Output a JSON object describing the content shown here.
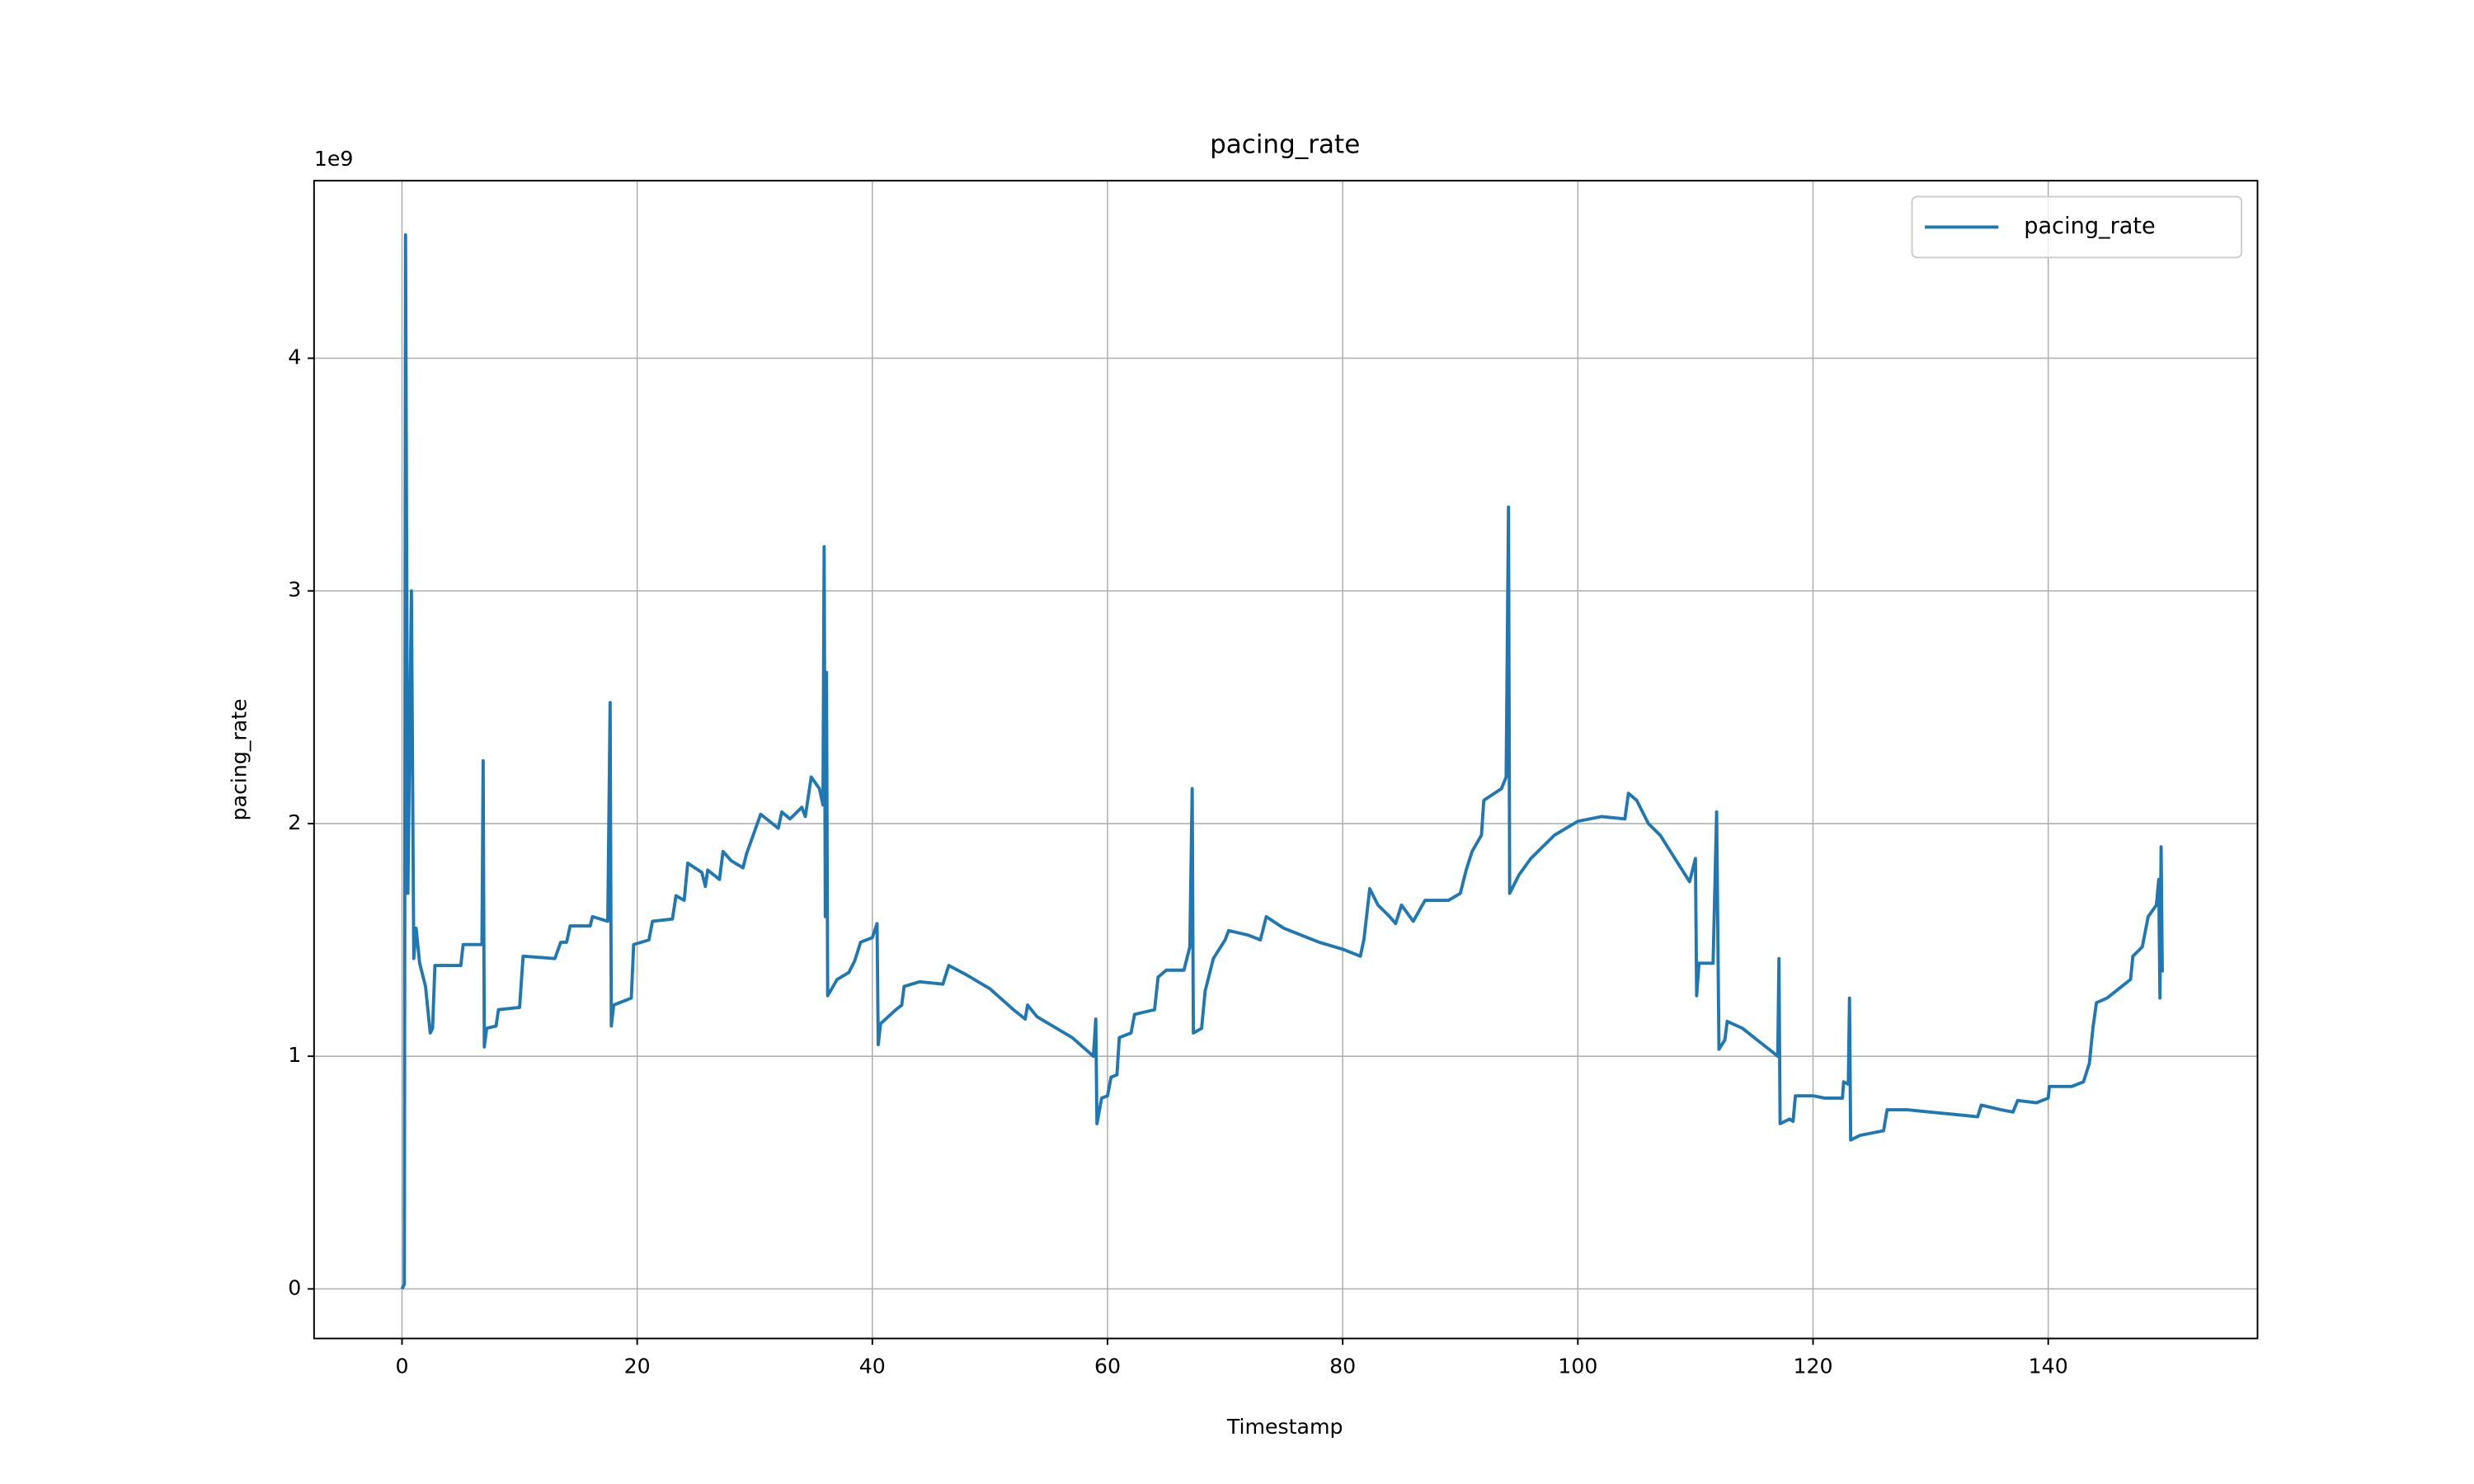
{
  "chart_data": {
    "type": "line",
    "title": "pacing_rate",
    "xlabel": "Timestamp",
    "ylabel": "pacing_rate",
    "y_offset_label": "1e9",
    "x": [
      0,
      0.2,
      0.3,
      0.5,
      0.8,
      1.0,
      1.2,
      1.5,
      2.0,
      2.4,
      2.6,
      2.8,
      5,
      5.2,
      6.8,
      6.9,
      7.0,
      7.2,
      8,
      8.2,
      10,
      10.3,
      13,
      13.5,
      14,
      14.3,
      16,
      16.2,
      17.5,
      17.7,
      17.8,
      18,
      19.5,
      19.7,
      21,
      21.3,
      23,
      23.3,
      24,
      24.3,
      25.5,
      25.8,
      26,
      27,
      27.3,
      28,
      29,
      29.3,
      30.5,
      32,
      32.3,
      33,
      34,
      34.3,
      34.8,
      35.5,
      35.8,
      35.9,
      36,
      36.1,
      36.2,
      37,
      38,
      38.5,
      39,
      40,
      40.4,
      40.5,
      40.7,
      42,
      42.5,
      42.7,
      44,
      46,
      46.5,
      48,
      50,
      52,
      53,
      53.2,
      54,
      56,
      57,
      58.8,
      59,
      59.1,
      59.5,
      60,
      60.3,
      60.8,
      61,
      62,
      62.3,
      64,
      64.3,
      65,
      66.5,
      67,
      67.2,
      67.3,
      68,
      68.3,
      68.6,
      69,
      70,
      70.3,
      72,
      73,
      73.5,
      75,
      78,
      80,
      81.5,
      81.8,
      82.3,
      83,
      84,
      84.5,
      85,
      86,
      87,
      89,
      90,
      90.5,
      91,
      91.8,
      92,
      93.5,
      93.9,
      94.1,
      94.2,
      95,
      96,
      98,
      100,
      102,
      104,
      104.3,
      105,
      106,
      107,
      108,
      109.5,
      110,
      110.1,
      110.3,
      111.5,
      111.8,
      112,
      112.5,
      112.7,
      114,
      116,
      117,
      117.1,
      117.2,
      118,
      118.3,
      118.5,
      120,
      121,
      122.5,
      122.6,
      123,
      123.1,
      123.2,
      124,
      126,
      126.3,
      128,
      130,
      132,
      134,
      134.3,
      136,
      137,
      137.4,
      139,
      140,
      140.1,
      142,
      143,
      143.5,
      143.8,
      144.1,
      145,
      146,
      147,
      147.2,
      148,
      148.5,
      149.2,
      149.4,
      149.5,
      149.6,
      149.7
    ],
    "series": [
      {
        "name": "pacing_rate",
        "color": "#1f77b4",
        "values": [
          0,
          0.02,
          4.53,
          1.7,
          3.0,
          1.42,
          1.55,
          1.4,
          1.3,
          1.1,
          1.12,
          1.39,
          1.39,
          1.48,
          1.48,
          2.27,
          1.04,
          1.12,
          1.13,
          1.2,
          1.21,
          1.43,
          1.42,
          1.49,
          1.49,
          1.56,
          1.56,
          1.6,
          1.58,
          2.52,
          1.13,
          1.22,
          1.25,
          1.48,
          1.5,
          1.58,
          1.59,
          1.69,
          1.67,
          1.83,
          1.79,
          1.73,
          1.8,
          1.76,
          1.88,
          1.84,
          1.81,
          1.87,
          2.04,
          1.98,
          2.05,
          2.02,
          2.07,
          2.03,
          2.2,
          2.15,
          2.08,
          3.19,
          1.6,
          2.65,
          1.26,
          1.33,
          1.36,
          1.41,
          1.49,
          1.51,
          1.57,
          1.05,
          1.14,
          1.2,
          1.22,
          1.3,
          1.32,
          1.31,
          1.39,
          1.35,
          1.29,
          1.2,
          1.16,
          1.22,
          1.17,
          1.11,
          1.08,
          1.0,
          1.16,
          0.71,
          0.82,
          0.83,
          0.91,
          0.92,
          1.08,
          1.1,
          1.18,
          1.2,
          1.34,
          1.37,
          1.37,
          1.47,
          2.15,
          1.1,
          1.12,
          1.28,
          1.34,
          1.42,
          1.5,
          1.54,
          1.52,
          1.5,
          1.6,
          1.55,
          1.49,
          1.46,
          1.43,
          1.5,
          1.72,
          1.65,
          1.6,
          1.57,
          1.65,
          1.58,
          1.67,
          1.67,
          1.7,
          1.8,
          1.88,
          1.95,
          2.1,
          2.15,
          2.2,
          3.36,
          1.7,
          1.78,
          1.85,
          1.95,
          2.01,
          2.03,
          2.02,
          2.13,
          2.1,
          2.0,
          1.95,
          1.87,
          1.75,
          1.85,
          1.26,
          1.4,
          1.4,
          2.05,
          1.03,
          1.07,
          1.15,
          1.12,
          1.04,
          1.0,
          1.42,
          0.71,
          0.73,
          0.72,
          0.83,
          0.83,
          0.82,
          0.82,
          0.89,
          0.88,
          1.25,
          0.64,
          0.66,
          0.68,
          0.77,
          0.77,
          0.76,
          0.75,
          0.74,
          0.79,
          0.77,
          0.76,
          0.81,
          0.8,
          0.82,
          0.87,
          0.87,
          0.89,
          0.97,
          1.12,
          1.23,
          1.25,
          1.29,
          1.33,
          1.43,
          1.47,
          1.6,
          1.65,
          1.76,
          1.25,
          1.9,
          1.36
        ]
      }
    ],
    "xlim": [
      -7.48,
      157.8
    ],
    "ylim": [
      -0.213,
      4.763
    ],
    "xticks": [
      0,
      20,
      40,
      60,
      80,
      100,
      120,
      140
    ],
    "yticks": [
      0,
      1,
      2,
      3,
      4
    ],
    "grid": true,
    "legend": "upper right"
  }
}
